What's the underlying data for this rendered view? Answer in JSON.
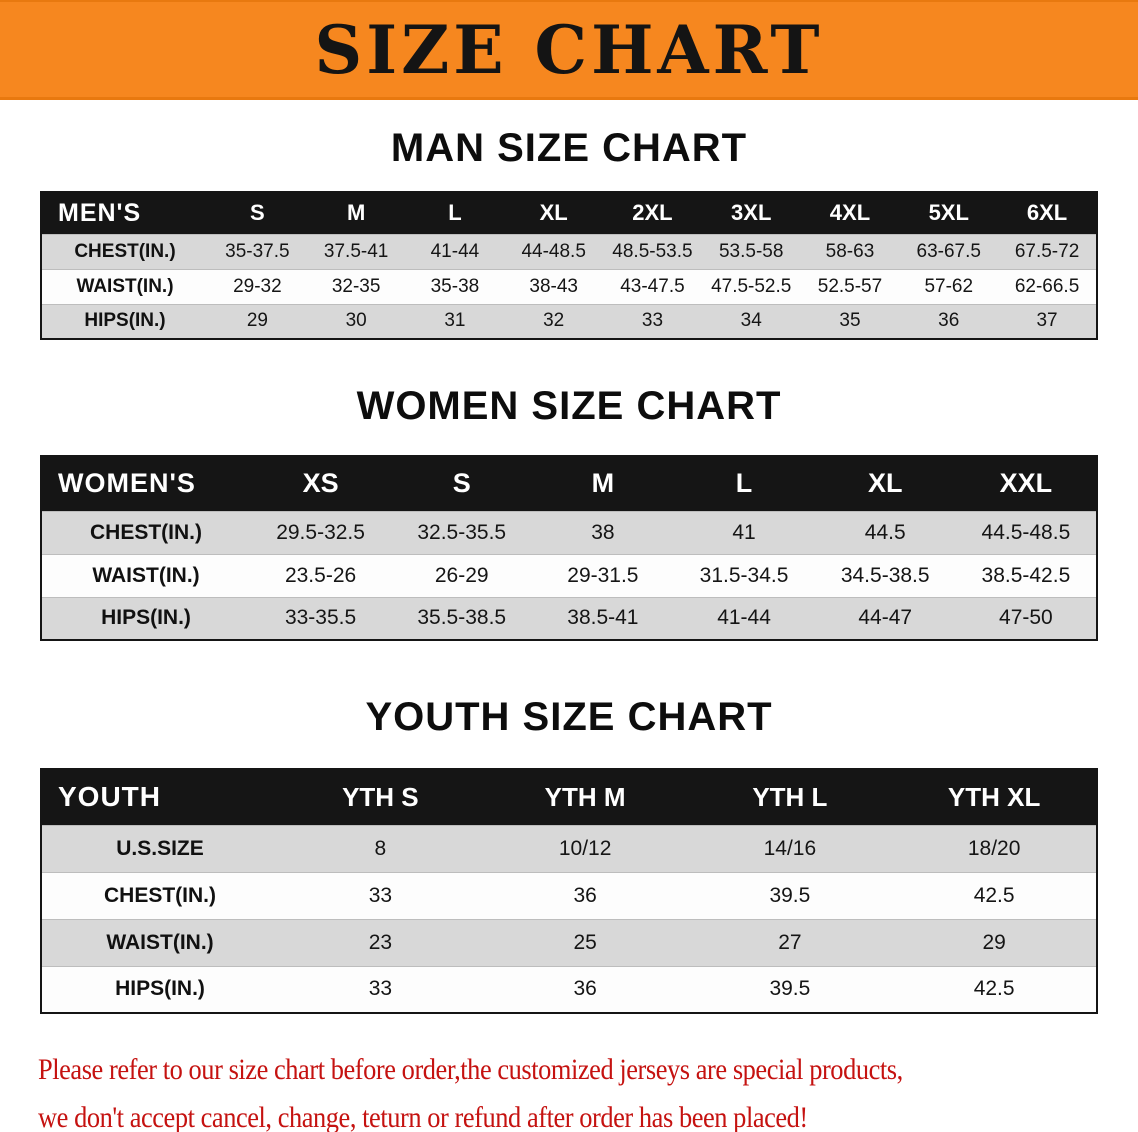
{
  "banner": {
    "title": "SIZE CHART",
    "background": "#f6871f"
  },
  "sections": [
    {
      "heading": "MAN SIZE CHART",
      "table": {
        "corner_label": "MEN'S",
        "columns": [
          "S",
          "M",
          "L",
          "XL",
          "2XL",
          "3XL",
          "4XL",
          "5XL",
          "6XL"
        ],
        "rows": [
          {
            "label": "CHEST(IN.)",
            "values": [
              "35-37.5",
              "37.5-41",
              "41-44",
              "44-48.5",
              "48.5-53.5",
              "53.5-58",
              "58-63",
              "63-67.5",
              "67.5-72"
            ]
          },
          {
            "label": "WAIST(IN.)",
            "values": [
              "29-32",
              "32-35",
              "35-38",
              "38-43",
              "43-47.5",
              "47.5-52.5",
              "52.5-57",
              "57-62",
              "62-66.5"
            ]
          },
          {
            "label": "HIPS(IN.)",
            "values": [
              "29",
              "30",
              "31",
              "32",
              "33",
              "34",
              "35",
              "36",
              "37"
            ]
          }
        ]
      }
    },
    {
      "heading": "WOMEN SIZE CHART",
      "table": {
        "corner_label": "WOMEN'S",
        "columns": [
          "XS",
          "S",
          "M",
          "L",
          "XL",
          "XXL"
        ],
        "rows": [
          {
            "label": "CHEST(IN.)",
            "values": [
              "29.5-32.5",
              "32.5-35.5",
              "38",
              "41",
              "44.5",
              "44.5-48.5"
            ]
          },
          {
            "label": "WAIST(IN.)",
            "values": [
              "23.5-26",
              "26-29",
              "29-31.5",
              "31.5-34.5",
              "34.5-38.5",
              "38.5-42.5"
            ]
          },
          {
            "label": "HIPS(IN.)",
            "values": [
              "33-35.5",
              "35.5-38.5",
              "38.5-41",
              "41-44",
              "44-47",
              "47-50"
            ]
          }
        ]
      }
    },
    {
      "heading": "YOUTH SIZE CHART",
      "table": {
        "corner_label": "YOUTH",
        "columns": [
          "YTH S",
          "YTH M",
          "YTH L",
          "YTH XL"
        ],
        "rows": [
          {
            "label": "U.S.SIZE",
            "values": [
              "8",
              "10/12",
              "14/16",
              "18/20"
            ]
          },
          {
            "label": "CHEST(IN.)",
            "values": [
              "33",
              "36",
              "39.5",
              "42.5"
            ]
          },
          {
            "label": "WAIST(IN.)",
            "values": [
              "23",
              "25",
              "27",
              "29"
            ]
          },
          {
            "label": "HIPS(IN.)",
            "values": [
              "33",
              "36",
              "39.5",
              "42.5"
            ]
          }
        ]
      }
    }
  ],
  "footer": {
    "line1": "Please refer to our size chart before order,the customized jerseys are special products,",
    "line2": "we don't accept cancel, change, teturn or refund after order has been placed!",
    "text_color": "#c51210"
  },
  "colors": {
    "banner_background": "#f6871f",
    "table_header_background": "#151515",
    "row_stripe": "#d8d8d8",
    "disclaimer_text": "#c51210"
  }
}
